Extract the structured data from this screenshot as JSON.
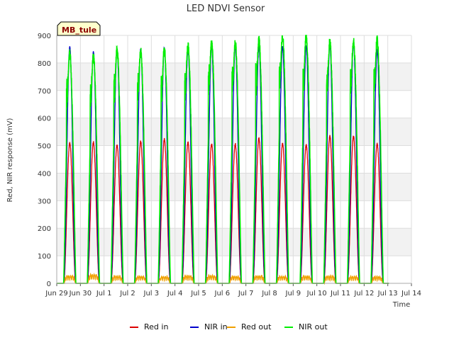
{
  "chart_data": {
    "type": "line",
    "title": "LED NDVI Sensor",
    "xlabel": "Time",
    "ylabel": "Red, NIR response (mV)",
    "ylim": [
      0,
      900
    ],
    "xlim": [
      0,
      15
    ],
    "x_unit": "days from Jun 29",
    "yticks": [
      0,
      100,
      200,
      300,
      400,
      500,
      600,
      700,
      800,
      900
    ],
    "xticks": [
      {
        "label": "Jun 29",
        "x": 0
      },
      {
        "label": "Jun 30",
        "x": 1
      },
      {
        "label": "Jul 1",
        "x": 2
      },
      {
        "label": "Jul 2",
        "x": 3
      },
      {
        "label": "Jul 3",
        "x": 4
      },
      {
        "label": "Jul 4",
        "x": 5
      },
      {
        "label": "Jul 5",
        "x": 6
      },
      {
        "label": "Jul 6",
        "x": 7
      },
      {
        "label": "Jul 7",
        "x": 8
      },
      {
        "label": "Jul 8",
        "x": 9
      },
      {
        "label": "Jul 9",
        "x": 10
      },
      {
        "label": "Jul 10",
        "x": 11
      },
      {
        "label": "Jul 11",
        "x": 12
      },
      {
        "label": "Jul 12",
        "x": 13
      },
      {
        "label": "Jul 13",
        "x": 14
      },
      {
        "label": "Jul 14",
        "x": 15
      }
    ],
    "grid": true,
    "alternating_bands": true,
    "legend_position": "bottom",
    "annotation": "MB_tule",
    "day_peaks_x": [
      0.55,
      1.55,
      2.55,
      3.55,
      4.55,
      5.55,
      6.55,
      7.55,
      8.55,
      9.55,
      10.55,
      11.55,
      12.55,
      13.55
    ],
    "series": [
      {
        "name": "Red in",
        "color": "#dd0000",
        "daily_peak": [
          510,
          512,
          503,
          515,
          522,
          512,
          506,
          506,
          527,
          508,
          504,
          535,
          535,
          507
        ]
      },
      {
        "name": "NIR in",
        "color": "#0000cc",
        "daily_peak": [
          857,
          840,
          850,
          850,
          855,
          850,
          860,
          860,
          860,
          860,
          860,
          865,
          870,
          845
        ]
      },
      {
        "name": "Red out",
        "color": "#f0a000",
        "daily_peak": [
          28,
          32,
          27,
          26,
          25,
          28,
          28,
          26,
          28,
          26,
          27,
          27,
          25,
          24
        ]
      },
      {
        "name": "NIR out",
        "color": "#00ee00",
        "daily_peak": [
          830,
          820,
          845,
          840,
          845,
          860,
          870,
          870,
          880,
          895,
          895,
          875,
          875,
          880
        ]
      }
    ]
  }
}
